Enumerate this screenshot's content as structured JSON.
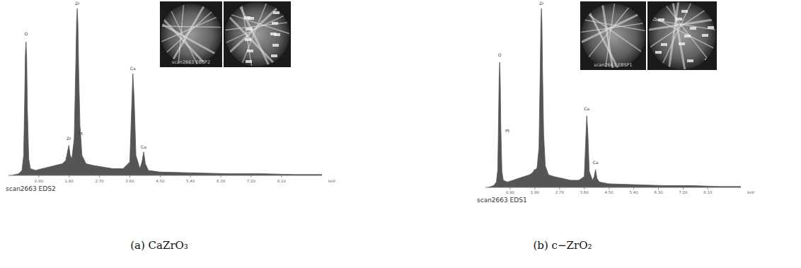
{
  "chart_data": [
    {
      "type": "area",
      "footer": "scan2663 EDS2",
      "caption": "(a) CaZrO₃",
      "ebsd_label": "scan2663 EBSP2",
      "x_label": "keV",
      "x": [
        0.1,
        0.3,
        0.4,
        0.45,
        0.48,
        0.5,
        0.52,
        0.54,
        0.56,
        0.6,
        0.65,
        0.8,
        1.0,
        1.2,
        1.4,
        1.6,
        1.7,
        1.75,
        1.79,
        1.83,
        1.88,
        1.95,
        2.0,
        2.02,
        2.04,
        2.06,
        2.08,
        2.12,
        2.18,
        2.3,
        2.5,
        2.8,
        3.1,
        3.4,
        3.6,
        3.65,
        3.69,
        3.73,
        3.78,
        3.9,
        3.96,
        4.01,
        4.06,
        4.15,
        4.5,
        5.5,
        6.5,
        7.5,
        8.5,
        9.3
      ],
      "series": [
        {
          "name": "EDS2",
          "color": "#555555",
          "values": [
            0,
            1,
            3,
            12,
            45,
            72,
            80,
            70,
            40,
            10,
            4,
            3,
            4,
            5,
            6,
            7,
            9,
            14,
            18,
            12,
            10,
            22,
            70,
            92,
            100,
            90,
            65,
            30,
            12,
            7,
            6,
            5,
            4,
            4,
            8,
            38,
            61,
            45,
            12,
            4,
            8,
            14,
            7,
            3,
            2,
            1.5,
            1,
            1,
            0.5,
            0.5
          ]
        }
      ],
      "xlim": [
        0,
        9.3
      ],
      "ylim": [
        0,
        100
      ],
      "xticks": [
        {
          "value": 0.9,
          "label": "0.90"
        },
        {
          "value": 1.8,
          "label": "1.80"
        },
        {
          "value": 2.7,
          "label": "2.70"
        },
        {
          "value": 3.6,
          "label": "3.60"
        },
        {
          "value": 4.5,
          "label": "4.50"
        },
        {
          "value": 5.4,
          "label": "5.40"
        },
        {
          "value": 6.3,
          "label": "6.30"
        },
        {
          "value": 7.2,
          "label": "7.20"
        },
        {
          "value": 8.1,
          "label": "8.10"
        }
      ],
      "tick_labels": "x",
      "grid": false,
      "annotations": [
        {
          "text": "O",
          "x": 0.52,
          "y": 84
        },
        {
          "text": "Zr",
          "x": 1.79,
          "y": 21
        },
        {
          "text": "Pt",
          "x": 2.14,
          "y": 24
        },
        {
          "text": "Zr",
          "x": 2.04,
          "y": 102
        },
        {
          "text": "Ca",
          "x": 3.69,
          "y": 63
        },
        {
          "text": "Ca",
          "x": 4.01,
          "y": 16
        }
      ]
    },
    {
      "type": "area",
      "footer": "scan2663 EDS1",
      "caption": "(b) c−ZrO₂",
      "ebsd_label": "scan2663 EBSP1",
      "x_label": "keV",
      "x": [
        0.1,
        0.3,
        0.4,
        0.45,
        0.48,
        0.5,
        0.52,
        0.54,
        0.56,
        0.6,
        0.65,
        0.8,
        1.0,
        1.2,
        1.4,
        1.6,
        1.7,
        1.75,
        1.79,
        1.83,
        1.88,
        1.95,
        2.0,
        2.02,
        2.04,
        2.06,
        2.08,
        2.12,
        2.18,
        2.3,
        2.5,
        2.8,
        3.1,
        3.4,
        3.6,
        3.65,
        3.69,
        3.73,
        3.78,
        3.9,
        3.96,
        4.01,
        4.06,
        4.15,
        4.5,
        5.5,
        6.5,
        7.5,
        8.5,
        9.3
      ],
      "series": [
        {
          "name": "EDS1",
          "color": "#555555",
          "values": [
            0,
            1,
            3,
            10,
            40,
            62,
            70,
            60,
            35,
            9,
            4,
            3,
            4,
            5,
            6,
            7,
            8,
            9,
            10,
            10,
            11,
            22,
            70,
            92,
            100,
            90,
            65,
            30,
            12,
            7,
            6,
            5,
            4,
            4,
            6,
            25,
            40,
            30,
            9,
            4,
            6,
            10,
            5,
            3,
            2,
            1.5,
            1,
            1,
            0.5,
            0.5
          ]
        }
      ],
      "xlim": [
        0,
        9.3
      ],
      "ylim": [
        0,
        100
      ],
      "xticks": [
        {
          "value": 0.9,
          "label": "0.90"
        },
        {
          "value": 1.8,
          "label": "1.80"
        },
        {
          "value": 2.7,
          "label": "2.70"
        },
        {
          "value": 3.6,
          "label": "3.60"
        },
        {
          "value": 4.5,
          "label": "4.50"
        },
        {
          "value": 5.4,
          "label": "5.40"
        },
        {
          "value": 6.3,
          "label": "6.30"
        },
        {
          "value": 7.2,
          "label": "7.20"
        },
        {
          "value": 8.1,
          "label": "8.10"
        }
      ],
      "tick_labels": "x",
      "grid": false,
      "annotations": [
        {
          "text": "O",
          "x": 0.52,
          "y": 73
        },
        {
          "text": "Pt",
          "x": 0.8,
          "y": 31
        },
        {
          "text": "Zr",
          "x": 2.04,
          "y": 102
        },
        {
          "text": "Ca",
          "x": 3.69,
          "y": 43
        },
        {
          "text": "Ca",
          "x": 4.01,
          "y": 13
        }
      ]
    }
  ]
}
